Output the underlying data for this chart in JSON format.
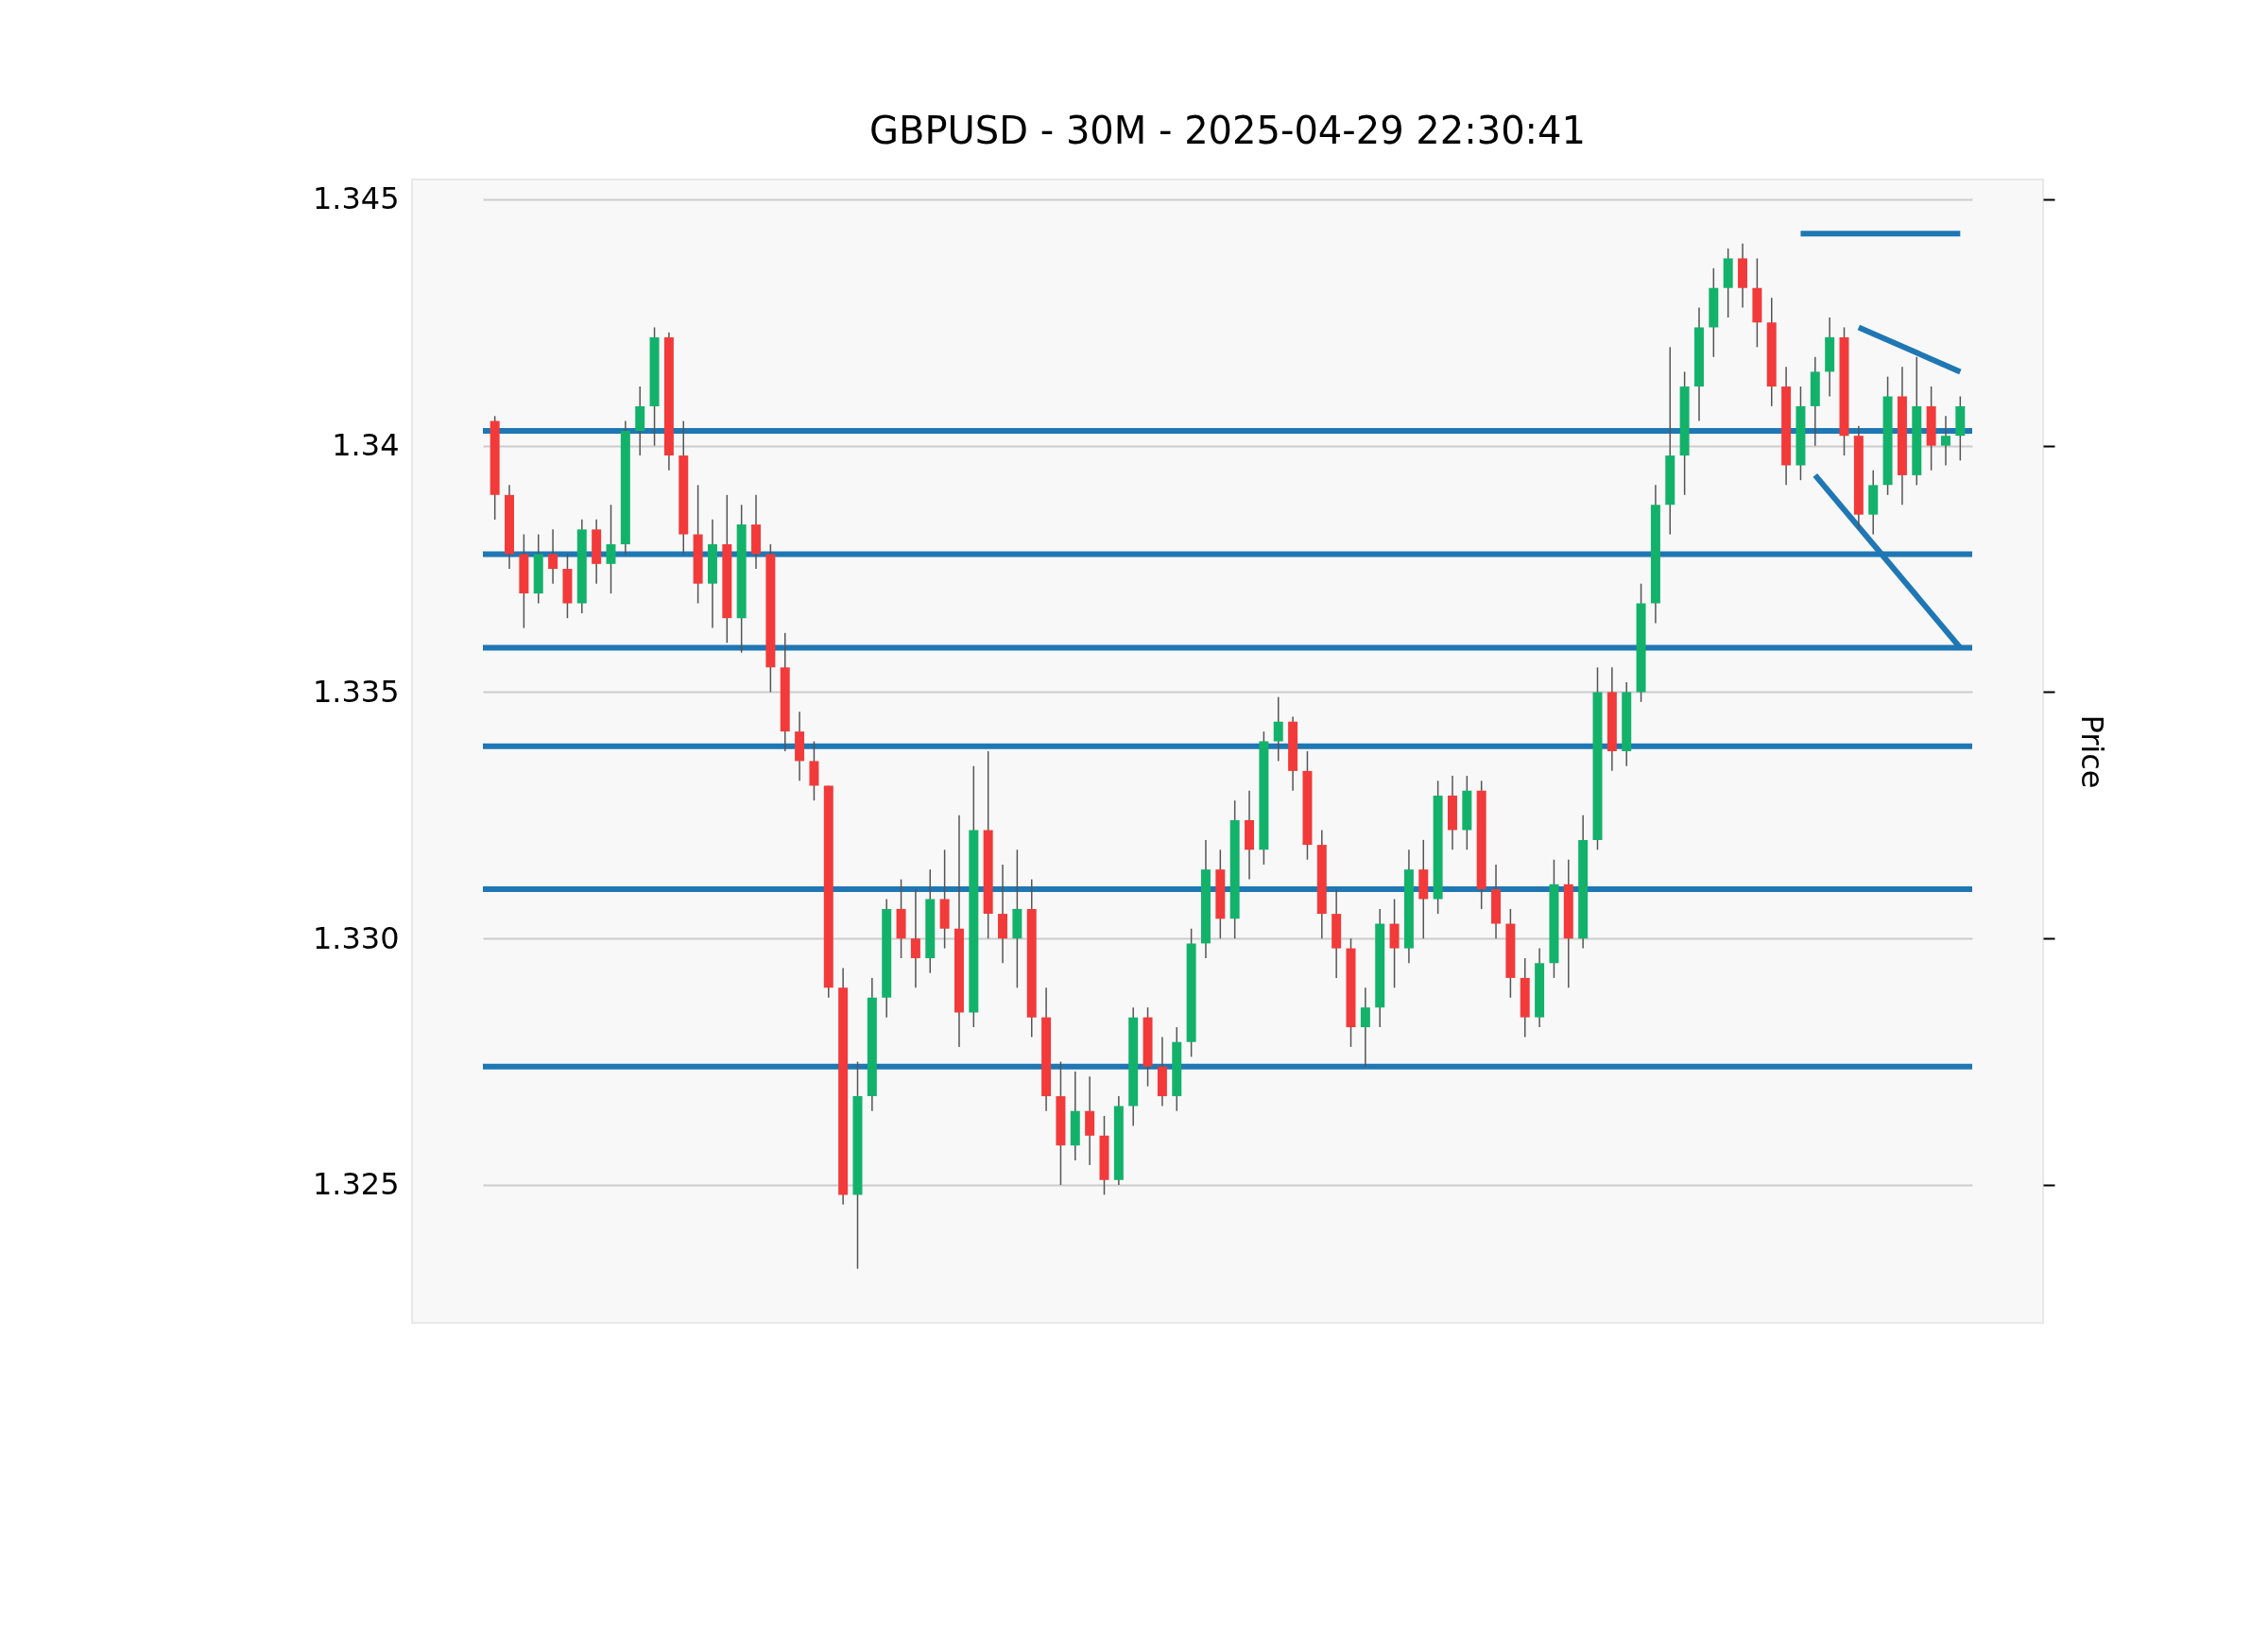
{
  "chart_data": {
    "type": "candlestick",
    "title": "GBPUSD - 30M - 2025-04-29 22:30:41",
    "ylabel": "Price",
    "categories": [
      null,
      null,
      null,
      null,
      null,
      null,
      null,
      null,
      null,
      null,
      null,
      null,
      null,
      null,
      null,
      null,
      null,
      null,
      null,
      null,
      null,
      null,
      null,
      null,
      null,
      null,
      null,
      null,
      null,
      null,
      null,
      null,
      null,
      null,
      null,
      null,
      null,
      null,
      null,
      null,
      null,
      null,
      null,
      null,
      null,
      null,
      null,
      null,
      null,
      null,
      null,
      null,
      null,
      null,
      null,
      null,
      null,
      null,
      null,
      null,
      null,
      null,
      null,
      null,
      null,
      null,
      null,
      null,
      null,
      null,
      null,
      null,
      null,
      null,
      null,
      null,
      null,
      null,
      null,
      null,
      null,
      null,
      null,
      null,
      null,
      null,
      null,
      null,
      null,
      null,
      null,
      null,
      null,
      null,
      null,
      null,
      null,
      null,
      null,
      null,
      null,
      null
    ],
    "ohlc": [
      [
        1.3405,
        1.3406,
        1.3385,
        1.339
      ],
      [
        1.339,
        1.3392,
        1.3375,
        1.3378
      ],
      [
        1.3378,
        1.3382,
        1.3363,
        1.337
      ],
      [
        1.337,
        1.3382,
        1.3368,
        1.3378
      ],
      [
        1.3378,
        1.3383,
        1.3372,
        1.3375
      ],
      [
        1.3375,
        1.3378,
        1.3365,
        1.3368
      ],
      [
        1.3368,
        1.3385,
        1.3366,
        1.3383
      ],
      [
        1.3383,
        1.3385,
        1.3372,
        1.3376
      ],
      [
        1.3376,
        1.3388,
        1.337,
        1.338
      ],
      [
        1.338,
        1.3405,
        1.3378,
        1.3403
      ],
      [
        1.3403,
        1.3412,
        1.3398,
        1.3408
      ],
      [
        1.3408,
        1.3424,
        1.34,
        1.3422
      ],
      [
        1.3422,
        1.3423,
        1.3395,
        1.3398
      ],
      [
        1.3398,
        1.3405,
        1.3378,
        1.3382
      ],
      [
        1.3382,
        1.3392,
        1.3368,
        1.3372
      ],
      [
        1.3372,
        1.3385,
        1.3363,
        1.338
      ],
      [
        1.338,
        1.339,
        1.336,
        1.3365
      ],
      [
        1.3365,
        1.3388,
        1.3358,
        1.3384
      ],
      [
        1.3384,
        1.339,
        1.3375,
        1.3378
      ],
      [
        1.3378,
        1.338,
        1.335,
        1.3355
      ],
      [
        1.3355,
        1.3362,
        1.3338,
        1.3342
      ],
      [
        1.3342,
        1.3346,
        1.3332,
        1.3336
      ],
      [
        1.3336,
        1.334,
        1.3328,
        1.3331
      ],
      [
        1.3331,
        1.3331,
        1.3288,
        1.329
      ],
      [
        1.329,
        1.3294,
        1.3246,
        1.3248
      ],
      [
        1.3248,
        1.3275,
        1.3233,
        1.3268
      ],
      [
        1.3268,
        1.3292,
        1.3265,
        1.3288
      ],
      [
        1.3288,
        1.3308,
        1.3284,
        1.3306
      ],
      [
        1.3306,
        1.3312,
        1.3296,
        1.33
      ],
      [
        1.33,
        1.331,
        1.329,
        1.3296
      ],
      [
        1.3296,
        1.3314,
        1.3293,
        1.3308
      ],
      [
        1.3308,
        1.3318,
        1.3298,
        1.3302
      ],
      [
        1.3302,
        1.3325,
        1.3278,
        1.3285
      ],
      [
        1.3285,
        1.3335,
        1.3282,
        1.3322
      ],
      [
        1.3322,
        1.3338,
        1.33,
        1.3305
      ],
      [
        1.3305,
        1.3315,
        1.3295,
        1.33
      ],
      [
        1.33,
        1.3318,
        1.329,
        1.3306
      ],
      [
        1.3306,
        1.3312,
        1.328,
        1.3284
      ],
      [
        1.3284,
        1.329,
        1.3265,
        1.3268
      ],
      [
        1.3268,
        1.3275,
        1.325,
        1.3258
      ],
      [
        1.3258,
        1.3273,
        1.3255,
        1.3265
      ],
      [
        1.3265,
        1.3272,
        1.3254,
        1.326
      ],
      [
        1.326,
        1.3264,
        1.3248,
        1.3251
      ],
      [
        1.3251,
        1.3268,
        1.325,
        1.3266
      ],
      [
        1.3266,
        1.3286,
        1.3262,
        1.3284
      ],
      [
        1.3284,
        1.3286,
        1.327,
        1.3274
      ],
      [
        1.3274,
        1.328,
        1.3266,
        1.3268
      ],
      [
        1.3268,
        1.3282,
        1.3265,
        1.3279
      ],
      [
        1.3279,
        1.3302,
        1.3276,
        1.3299
      ],
      [
        1.3299,
        1.332,
        1.3296,
        1.3314
      ],
      [
        1.3314,
        1.3318,
        1.33,
        1.3304
      ],
      [
        1.3304,
        1.3328,
        1.33,
        1.3324
      ],
      [
        1.3324,
        1.333,
        1.3312,
        1.3318
      ],
      [
        1.3318,
        1.3342,
        1.3315,
        1.334
      ],
      [
        1.334,
        1.3349,
        1.3336,
        1.3344
      ],
      [
        1.3344,
        1.3345,
        1.333,
        1.3334
      ],
      [
        1.3334,
        1.3338,
        1.3316,
        1.3319
      ],
      [
        1.3319,
        1.3322,
        1.33,
        1.3305
      ],
      [
        1.3305,
        1.331,
        1.3292,
        1.3298
      ],
      [
        1.3298,
        1.33,
        1.3278,
        1.3282
      ],
      [
        1.3282,
        1.329,
        1.3274,
        1.3286
      ],
      [
        1.3286,
        1.3306,
        1.3282,
        1.3303
      ],
      [
        1.3303,
        1.3308,
        1.329,
        1.3298
      ],
      [
        1.3298,
        1.3318,
        1.3295,
        1.3314
      ],
      [
        1.3314,
        1.332,
        1.33,
        1.3308
      ],
      [
        1.3308,
        1.3332,
        1.3305,
        1.3329
      ],
      [
        1.3329,
        1.3333,
        1.3318,
        1.3322
      ],
      [
        1.3322,
        1.3333,
        1.3318,
        1.333
      ],
      [
        1.333,
        1.3332,
        1.3306,
        1.331
      ],
      [
        1.331,
        1.3315,
        1.33,
        1.3303
      ],
      [
        1.3303,
        1.3306,
        1.3288,
        1.3292
      ],
      [
        1.3292,
        1.3296,
        1.328,
        1.3284
      ],
      [
        1.3284,
        1.3298,
        1.3282,
        1.3295
      ],
      [
        1.3295,
        1.3316,
        1.3292,
        1.3311
      ],
      [
        1.3311,
        1.3316,
        1.329,
        1.33
      ],
      [
        1.33,
        1.3325,
        1.3298,
        1.332
      ],
      [
        1.332,
        1.3355,
        1.3318,
        1.335
      ],
      [
        1.335,
        1.3355,
        1.3334,
        1.3338
      ],
      [
        1.3338,
        1.3352,
        1.3335,
        1.335
      ],
      [
        1.335,
        1.3372,
        1.3348,
        1.3368
      ],
      [
        1.3368,
        1.3392,
        1.3364,
        1.3388
      ],
      [
        1.3388,
        1.342,
        1.3382,
        1.3398
      ],
      [
        1.3398,
        1.3415,
        1.339,
        1.3412
      ],
      [
        1.3412,
        1.3428,
        1.3405,
        1.3424
      ],
      [
        1.3424,
        1.3436,
        1.3418,
        1.3432
      ],
      [
        1.3432,
        1.344,
        1.3426,
        1.3438
      ],
      [
        1.3438,
        1.3441,
        1.3428,
        1.3432
      ],
      [
        1.3432,
        1.3438,
        1.342,
        1.3425
      ],
      [
        1.3425,
        1.343,
        1.3408,
        1.3412
      ],
      [
        1.3412,
        1.3416,
        1.3392,
        1.3396
      ],
      [
        1.3396,
        1.3412,
        1.3393,
        1.3408
      ],
      [
        1.3408,
        1.3418,
        1.34,
        1.3415
      ],
      [
        1.3415,
        1.3426,
        1.341,
        1.3422
      ],
      [
        1.3422,
        1.3424,
        1.3398,
        1.3402
      ],
      [
        1.3402,
        1.3404,
        1.3383,
        1.3386
      ],
      [
        1.3386,
        1.3395,
        1.3382,
        1.3392
      ],
      [
        1.3392,
        1.3414,
        1.339,
        1.341
      ],
      [
        1.341,
        1.3416,
        1.3388,
        1.3394
      ],
      [
        1.3394,
        1.3418,
        1.3392,
        1.3408
      ],
      [
        1.3408,
        1.3412,
        1.3395,
        1.34
      ],
      [
        1.34,
        1.3406,
        1.3396,
        1.3402
      ],
      [
        1.3402,
        1.341,
        1.3397,
        1.3408
      ]
    ],
    "colors": [
      "#f23a3a",
      "#f23a3a",
      "#f23a3a",
      "#13b26b",
      "#f23a3a",
      "#f23a3a",
      "#13b26b",
      "#f23a3a",
      "#13b26b",
      "#13b26b",
      "#13b26b",
      "#13b26b",
      "#f23a3a",
      "#f23a3a",
      "#f23a3a",
      "#13b26b",
      "#f23a3a",
      "#13b26b",
      "#f23a3a",
      "#f23a3a",
      "#f23a3a",
      "#f23a3a",
      "#f23a3a",
      "#f23a3a",
      "#f23a3a",
      "#13b26b",
      "#13b26b",
      "#13b26b",
      "#f23a3a",
      "#f23a3a",
      "#13b26b",
      "#f23a3a",
      "#f23a3a",
      "#13b26b",
      "#f23a3a",
      "#f23a3a",
      "#13b26b",
      "#f23a3a",
      "#f23a3a",
      "#f23a3a",
      "#13b26b",
      "#f23a3a",
      "#f23a3a",
      "#13b26b",
      "#13b26b",
      "#f23a3a",
      "#f23a3a",
      "#13b26b",
      "#13b26b",
      "#13b26b",
      "#f23a3a",
      "#13b26b",
      "#f23a3a",
      "#13b26b",
      "#13b26b",
      "#f23a3a",
      "#f23a3a",
      "#f23a3a",
      "#f23a3a",
      "#f23a3a",
      "#13b26b",
      "#13b26b",
      "#f23a3a",
      "#13b26b",
      "#f23a3a",
      "#13b26b",
      "#f23a3a",
      "#13b26b",
      "#f23a3a",
      "#f23a3a",
      "#f23a3a",
      "#f23a3a",
      "#13b26b",
      "#13b26b",
      "#f23a3a",
      "#13b26b",
      "#13b26b",
      "#f23a3a",
      "#13b26b",
      "#13b26b",
      "#13b26b",
      "#13b26b",
      "#13b26b",
      "#13b26b",
      "#13b26b",
      "#13b26b",
      "#f23a3a",
      "#f23a3a",
      "#f23a3a",
      "#f23a3a",
      "#13b26b",
      "#13b26b",
      "#13b26b",
      "#f23a3a",
      "#f23a3a",
      "#13b26b",
      "#13b26b",
      "#f23a3a",
      "#13b26b",
      "#f23a3a",
      "#13b26b",
      "#13b26b"
    ],
    "series": [
      {
        "type": "line",
        "color": "#1f77b4",
        "values": [
          null,
          null,
          null,
          null,
          null,
          null,
          null,
          null,
          null,
          null,
          null,
          null,
          null,
          null,
          null,
          null,
          null,
          null,
          null,
          null,
          null,
          null,
          null,
          null,
          null,
          null,
          null,
          null,
          null,
          null,
          null,
          null,
          null,
          null,
          null,
          null,
          null,
          null,
          null,
          null,
          null,
          null,
          null,
          null,
          null,
          null,
          null,
          null,
          null,
          null,
          null,
          null,
          null,
          null,
          null,
          null,
          null,
          null,
          null,
          null,
          null,
          null,
          null,
          null,
          null,
          null,
          null,
          null,
          null,
          null,
          null,
          null,
          null,
          null,
          null,
          null,
          null,
          null,
          null,
          null,
          null,
          null,
          null,
          null,
          null,
          null,
          null,
          null,
          null,
          null,
          1.3443,
          null,
          null,
          null,
          null,
          null,
          null,
          null,
          null,
          null,
          null,
          1.3443
        ]
      },
      {
        "type": "line",
        "color": "#1f77b4",
        "values": [
          null,
          null,
          null,
          null,
          null,
          null,
          null,
          null,
          null,
          null,
          null,
          null,
          null,
          null,
          null,
          null,
          null,
          null,
          null,
          null,
          null,
          null,
          null,
          null,
          null,
          null,
          null,
          null,
          null,
          null,
          null,
          null,
          null,
          null,
          null,
          null,
          null,
          null,
          null,
          null,
          null,
          null,
          null,
          null,
          null,
          null,
          null,
          null,
          null,
          null,
          null,
          null,
          null,
          null,
          null,
          null,
          null,
          null,
          null,
          null,
          null,
          null,
          null,
          null,
          null,
          null,
          null,
          null,
          null,
          null,
          null,
          null,
          null,
          null,
          null,
          null,
          null,
          null,
          null,
          null,
          null,
          null,
          null,
          null,
          null,
          null,
          null,
          null,
          null,
          null,
          null,
          null,
          null,
          null,
          1.3424,
          null,
          null,
          null,
          null,
          null,
          null,
          1.3415
        ]
      },
      {
        "type": "line",
        "color": "#1f77b4",
        "values": [
          null,
          null,
          null,
          null,
          null,
          null,
          null,
          null,
          null,
          null,
          null,
          null,
          null,
          null,
          null,
          null,
          null,
          null,
          null,
          null,
          null,
          null,
          null,
          null,
          null,
          null,
          null,
          null,
          null,
          null,
          null,
          null,
          null,
          null,
          null,
          null,
          null,
          null,
          null,
          null,
          null,
          null,
          null,
          null,
          null,
          null,
          null,
          null,
          null,
          null,
          null,
          null,
          null,
          null,
          null,
          null,
          null,
          null,
          null,
          null,
          null,
          null,
          null,
          null,
          null,
          null,
          null,
          null,
          null,
          null,
          null,
          null,
          null,
          null,
          null,
          null,
          null,
          null,
          null,
          null,
          null,
          null,
          null,
          null,
          null,
          null,
          null,
          null,
          null,
          null,
          null,
          1.3394,
          null,
          null,
          null,
          null,
          null,
          null,
          null,
          null,
          null,
          1.3359
        ]
      }
    ],
    "ref_lines": [
      {
        "axis": "y",
        "value": 1.3403,
        "color": "#1f77b4"
      },
      {
        "axis": "y",
        "value": 1.3378,
        "color": "#1f77b4"
      },
      {
        "axis": "y",
        "value": 1.3359,
        "color": "#1f77b4"
      },
      {
        "axis": "y",
        "value": 1.3339,
        "color": "#1f77b4"
      },
      {
        "axis": "y",
        "value": 1.331,
        "color": "#1f77b4"
      },
      {
        "axis": "y",
        "value": 1.3274,
        "color": "#1f77b4"
      }
    ],
    "ylim": [
      1.3222,
      1.3454
    ],
    "yticks": [
      1.325,
      {
        "value": 1.33,
        "label": "1.330"
      },
      1.335,
      1.34,
      1.345
    ],
    "grid": "y"
  }
}
